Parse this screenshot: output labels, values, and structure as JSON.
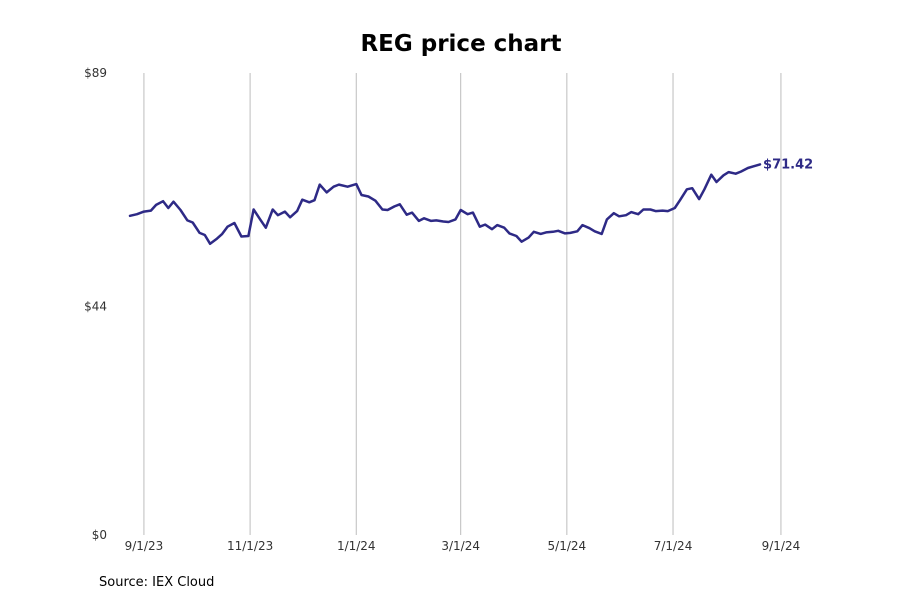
{
  "chart_data": {
    "type": "line",
    "title": "REG price chart",
    "source": "Source: IEX Cloud",
    "y_ticks": [
      {
        "value": 0,
        "label": "$0"
      },
      {
        "value": 44,
        "label": "$44"
      },
      {
        "value": 89,
        "label": "$89"
      }
    ],
    "ylim": [
      0,
      89
    ],
    "x_ticks": [
      {
        "date": "2023-09-01",
        "label": "9/1/23"
      },
      {
        "date": "2023-11-01",
        "label": "11/1/23"
      },
      {
        "date": "2024-01-01",
        "label": "1/1/24"
      },
      {
        "date": "2024-03-01",
        "label": "3/1/24"
      },
      {
        "date": "2024-05-01",
        "label": "5/1/24"
      },
      {
        "date": "2024-07-01",
        "label": "7/1/24"
      },
      {
        "date": "2024-09-01",
        "label": "9/1/24"
      }
    ],
    "xlim": [
      "2023-08-24",
      "2024-09-20"
    ],
    "grid": "vertical",
    "line_color": "#2e2a86",
    "last_value_label": "$71.42",
    "series": [
      {
        "points": [
          [
            "2023-08-24",
            61.5
          ],
          [
            "2023-08-28",
            61.8
          ],
          [
            "2023-09-01",
            62.3
          ],
          [
            "2023-09-05",
            62.5
          ],
          [
            "2023-09-08",
            63.6
          ],
          [
            "2023-09-12",
            64.3
          ],
          [
            "2023-09-15",
            63.0
          ],
          [
            "2023-09-18",
            64.2
          ],
          [
            "2023-09-22",
            62.6
          ],
          [
            "2023-09-26",
            60.6
          ],
          [
            "2023-09-29",
            60.2
          ],
          [
            "2023-10-03",
            58.2
          ],
          [
            "2023-10-06",
            57.8
          ],
          [
            "2023-10-09",
            56.1
          ],
          [
            "2023-10-13",
            57.1
          ],
          [
            "2023-10-16",
            58.0
          ],
          [
            "2023-10-19",
            59.4
          ],
          [
            "2023-10-23",
            60.1
          ],
          [
            "2023-10-27",
            57.5
          ],
          [
            "2023-10-31",
            57.6
          ],
          [
            "2023-11-03",
            62.7
          ],
          [
            "2023-11-07",
            60.7
          ],
          [
            "2023-11-10",
            59.2
          ],
          [
            "2023-11-14",
            62.7
          ],
          [
            "2023-11-17",
            61.6
          ],
          [
            "2023-11-21",
            62.3
          ],
          [
            "2023-11-24",
            61.2
          ],
          [
            "2023-11-28",
            62.4
          ],
          [
            "2023-12-01",
            64.6
          ],
          [
            "2023-12-05",
            64.1
          ],
          [
            "2023-12-08",
            64.5
          ],
          [
            "2023-12-11",
            67.5
          ],
          [
            "2023-12-15",
            66.0
          ],
          [
            "2023-12-19",
            67.1
          ],
          [
            "2023-12-22",
            67.5
          ],
          [
            "2023-12-27",
            67.1
          ],
          [
            "2024-01-01",
            67.6
          ],
          [
            "2024-01-04",
            65.5
          ],
          [
            "2024-01-08",
            65.2
          ],
          [
            "2024-01-12",
            64.4
          ],
          [
            "2024-01-16",
            62.7
          ],
          [
            "2024-01-19",
            62.6
          ],
          [
            "2024-01-23",
            63.3
          ],
          [
            "2024-01-26",
            63.7
          ],
          [
            "2024-01-30",
            61.7
          ],
          [
            "2024-02-02",
            62.1
          ],
          [
            "2024-02-06",
            60.5
          ],
          [
            "2024-02-09",
            61.0
          ],
          [
            "2024-02-13",
            60.5
          ],
          [
            "2024-02-16",
            60.6
          ],
          [
            "2024-02-20",
            60.4
          ],
          [
            "2024-02-23",
            60.3
          ],
          [
            "2024-02-27",
            60.8
          ],
          [
            "2024-03-01",
            62.6
          ],
          [
            "2024-03-05",
            61.8
          ],
          [
            "2024-03-08",
            62.1
          ],
          [
            "2024-03-12",
            59.4
          ],
          [
            "2024-03-15",
            59.8
          ],
          [
            "2024-03-19",
            58.9
          ],
          [
            "2024-03-22",
            59.7
          ],
          [
            "2024-03-26",
            59.2
          ],
          [
            "2024-03-29",
            58.1
          ],
          [
            "2024-04-02",
            57.6
          ],
          [
            "2024-04-05",
            56.5
          ],
          [
            "2024-04-09",
            57.3
          ],
          [
            "2024-04-12",
            58.4
          ],
          [
            "2024-04-16",
            58.0
          ],
          [
            "2024-04-19",
            58.3
          ],
          [
            "2024-04-23",
            58.4
          ],
          [
            "2024-04-26",
            58.6
          ],
          [
            "2024-04-30",
            58.1
          ],
          [
            "2024-05-03",
            58.2
          ],
          [
            "2024-05-07",
            58.5
          ],
          [
            "2024-05-10",
            59.7
          ],
          [
            "2024-05-14",
            59.1
          ],
          [
            "2024-05-17",
            58.5
          ],
          [
            "2024-05-21",
            58.0
          ],
          [
            "2024-05-24",
            60.8
          ],
          [
            "2024-05-28",
            62.0
          ],
          [
            "2024-05-31",
            61.4
          ],
          [
            "2024-06-04",
            61.6
          ],
          [
            "2024-06-07",
            62.2
          ],
          [
            "2024-06-11",
            61.8
          ],
          [
            "2024-06-14",
            62.7
          ],
          [
            "2024-06-18",
            62.7
          ],
          [
            "2024-06-21",
            62.4
          ],
          [
            "2024-06-25",
            62.5
          ],
          [
            "2024-06-28",
            62.4
          ],
          [
            "2024-07-02",
            63.0
          ],
          [
            "2024-07-05",
            64.5
          ],
          [
            "2024-07-09",
            66.6
          ],
          [
            "2024-07-12",
            66.8
          ],
          [
            "2024-07-16",
            64.7
          ],
          [
            "2024-07-19",
            66.6
          ],
          [
            "2024-07-23",
            69.4
          ],
          [
            "2024-07-26",
            68.0
          ],
          [
            "2024-07-30",
            69.3
          ],
          [
            "2024-08-02",
            69.9
          ],
          [
            "2024-08-06",
            69.6
          ],
          [
            "2024-08-09",
            70.0
          ],
          [
            "2024-08-13",
            70.7
          ],
          [
            "2024-08-16",
            71.0
          ],
          [
            "2024-08-20",
            71.4
          ]
        ]
      }
    ]
  }
}
